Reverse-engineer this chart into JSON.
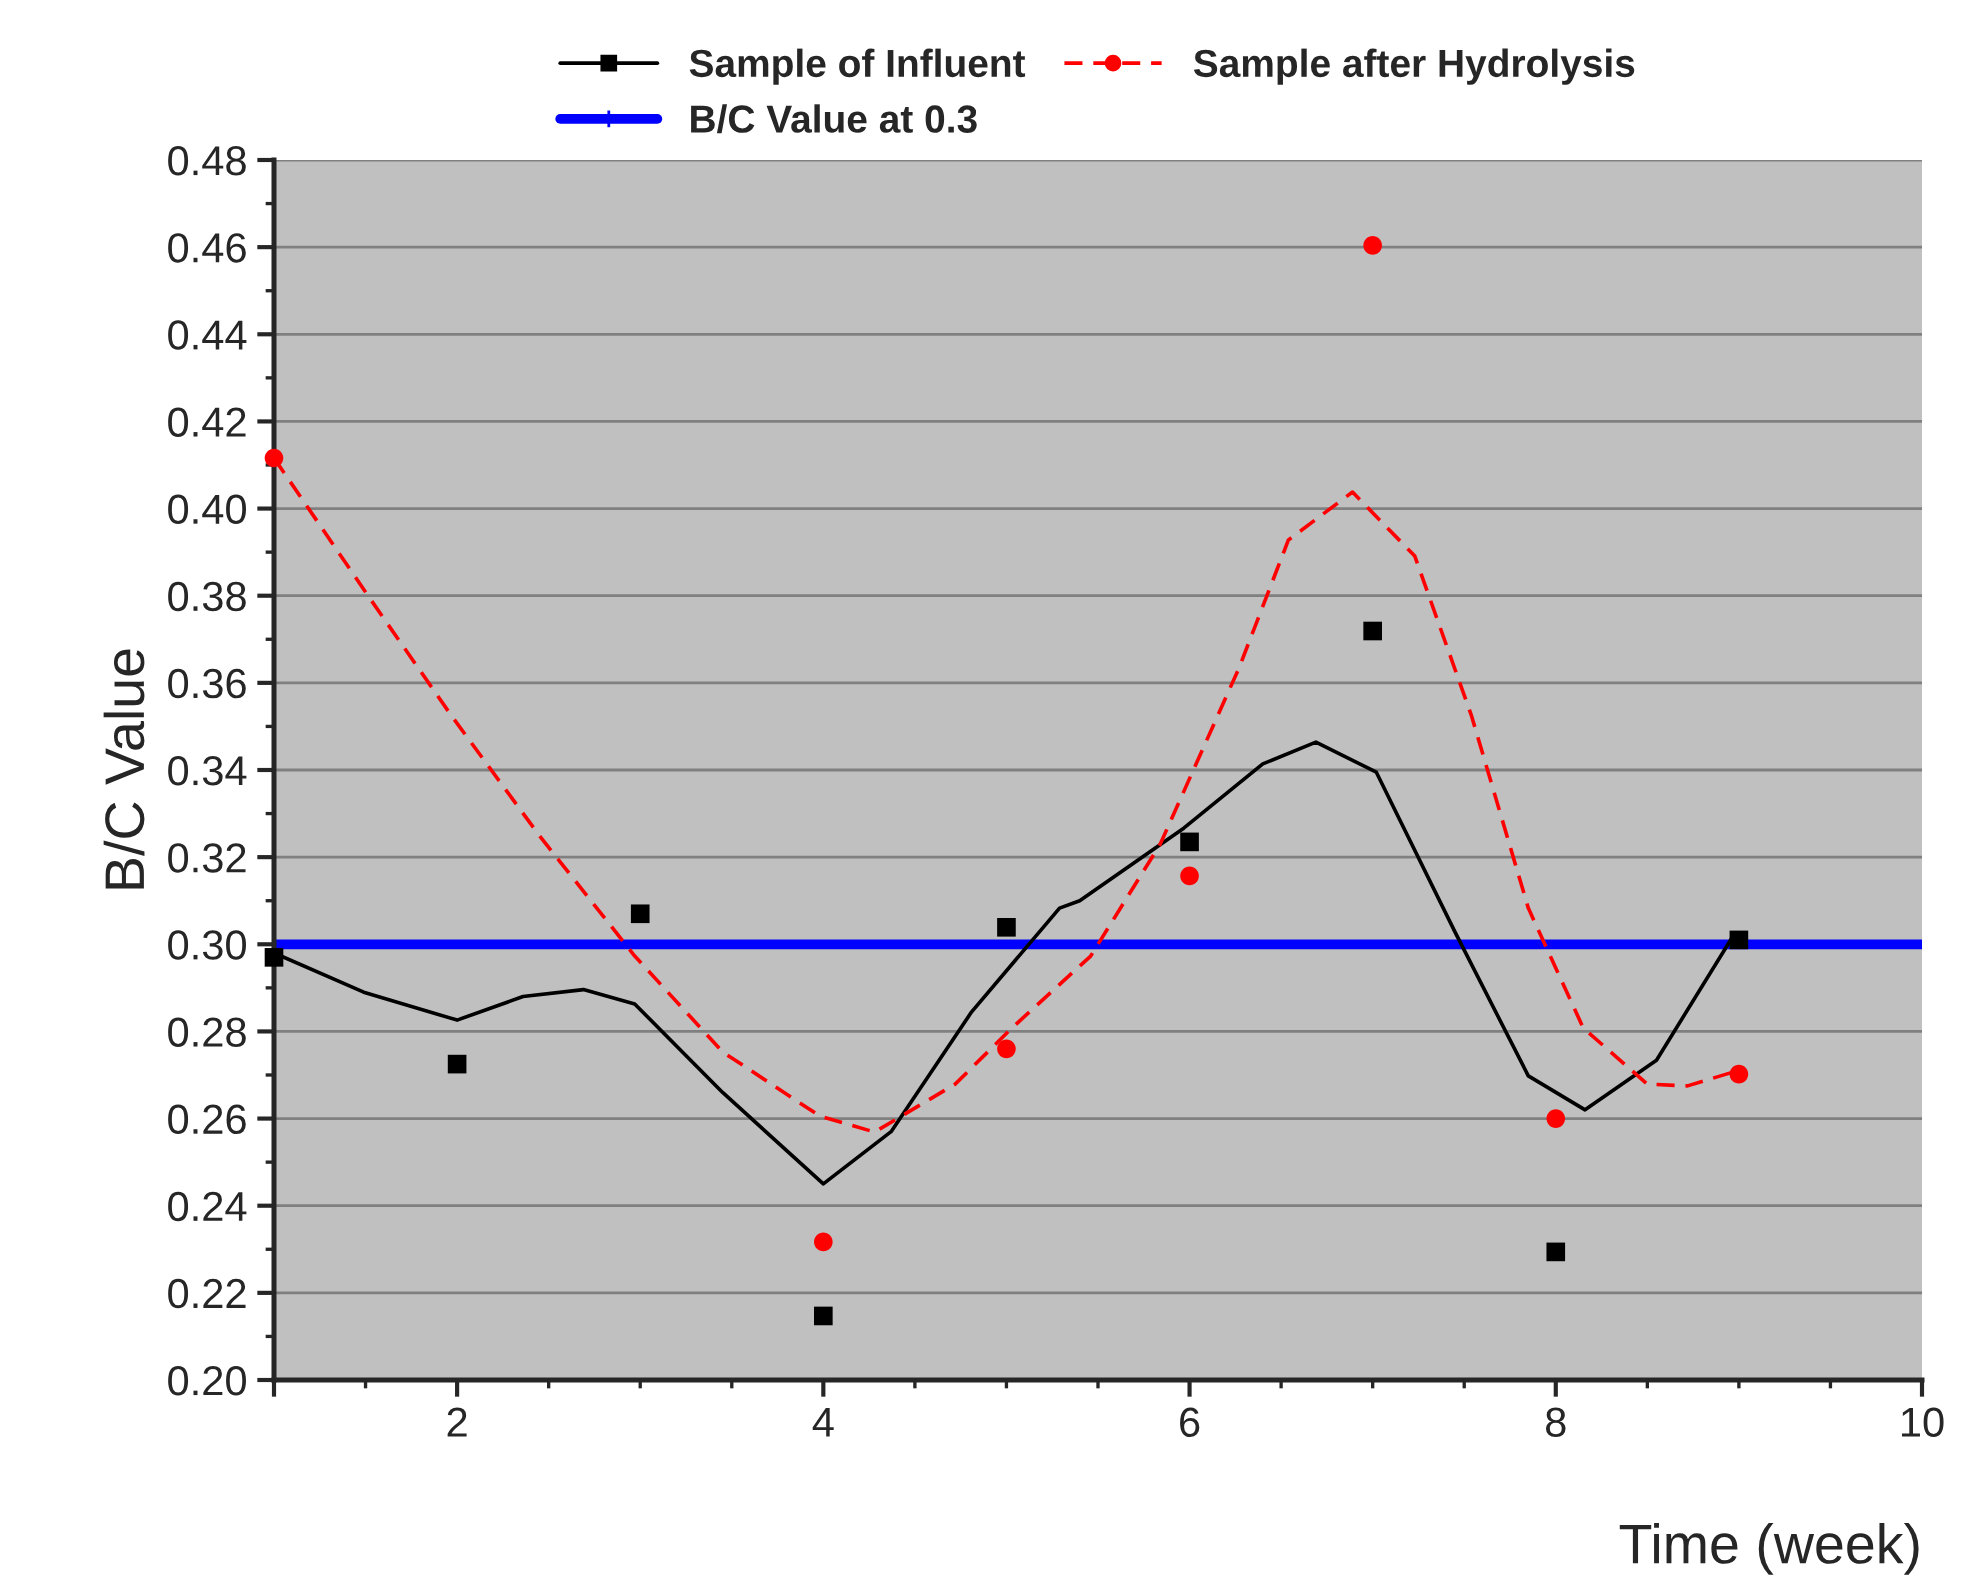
{
  "chart_data": {
    "type": "scatter",
    "xlabel": "Time (week)",
    "ylabel": "B/C Value",
    "xlim": [
      1,
      10
    ],
    "xticks": [
      {
        "value": 1,
        "label": null
      },
      2,
      4,
      6,
      8,
      10
    ],
    "ylim": [
      0.2,
      0.48
    ],
    "yticks": [
      {
        "value": 0.2,
        "label": "0.20"
      },
      0.22,
      0.24,
      0.26,
      0.28,
      {
        "value": 0.3,
        "label": "0.30"
      },
      0.32,
      0.34,
      0.36,
      0.38,
      {
        "value": 0.4,
        "label": "0.40"
      },
      0.42,
      0.44,
      0.46,
      0.48
    ],
    "grid": "y",
    "legend": "top",
    "series": [
      {
        "name": "Sample of Influent",
        "marker": "square",
        "color": "#000000",
        "x": [
          1,
          2,
          3,
          4,
          5,
          6,
          7,
          8,
          9
        ],
        "values": [
          0.297,
          0.2725,
          0.307,
          0.2147,
          0.3039,
          0.3235,
          0.3719,
          0.2294,
          0.301
        ]
      },
      {
        "name": "Sample after Hydrolysis",
        "marker": "circle",
        "color": "#ff0000",
        "x": [
          1,
          4,
          5,
          6,
          7,
          8,
          9
        ],
        "values": [
          0.4116,
          0.2317,
          0.276,
          0.3157,
          0.4604,
          0.26,
          0.2702
        ]
      },
      {
        "type": "line",
        "line_style": "solid",
        "color": "#000000",
        "x": [
          1,
          1.49,
          2,
          2.36,
          2.69,
          2.97,
          3.45,
          4.0,
          4.37,
          4.81,
          5.29,
          5.4,
          5.97,
          6.4,
          6.69,
          7.02,
          7.45,
          7.85,
          8.16,
          8.55,
          8.97
        ],
        "values": [
          0.298,
          0.289,
          0.2826,
          0.288,
          0.2896,
          0.2863,
          0.266,
          0.245,
          0.257,
          0.2845,
          0.3083,
          0.31,
          0.3267,
          0.3414,
          0.3464,
          0.3395,
          0.3028,
          0.2698,
          0.262,
          0.2734,
          0.302
        ]
      },
      {
        "type": "line",
        "line_style": "dashed",
        "color": "#ff0000",
        "x": [
          1,
          1.53,
          1.97,
          2.45,
          2.97,
          3.45,
          3.98,
          4.28,
          4.72,
          5.03,
          5.46,
          5.84,
          6.27,
          6.54,
          6.89,
          7.23,
          7.54,
          7.85,
          8.15,
          8.5,
          8.72,
          8.97
        ],
        "values": [
          0.4116,
          0.379,
          0.3524,
          0.3249,
          0.2973,
          0.2753,
          0.2606,
          0.2569,
          0.2679,
          0.2808,
          0.2973,
          0.323,
          0.3634,
          0.3928,
          0.4038,
          0.3891,
          0.3524,
          0.3083,
          0.2808,
          0.2679,
          0.2675,
          0.2707
        ]
      }
    ],
    "ref_lines": [
      {
        "axis": "y",
        "value": 0.3,
        "label": "B/C Value at 0.3",
        "color": "#0000ff"
      }
    ]
  }
}
